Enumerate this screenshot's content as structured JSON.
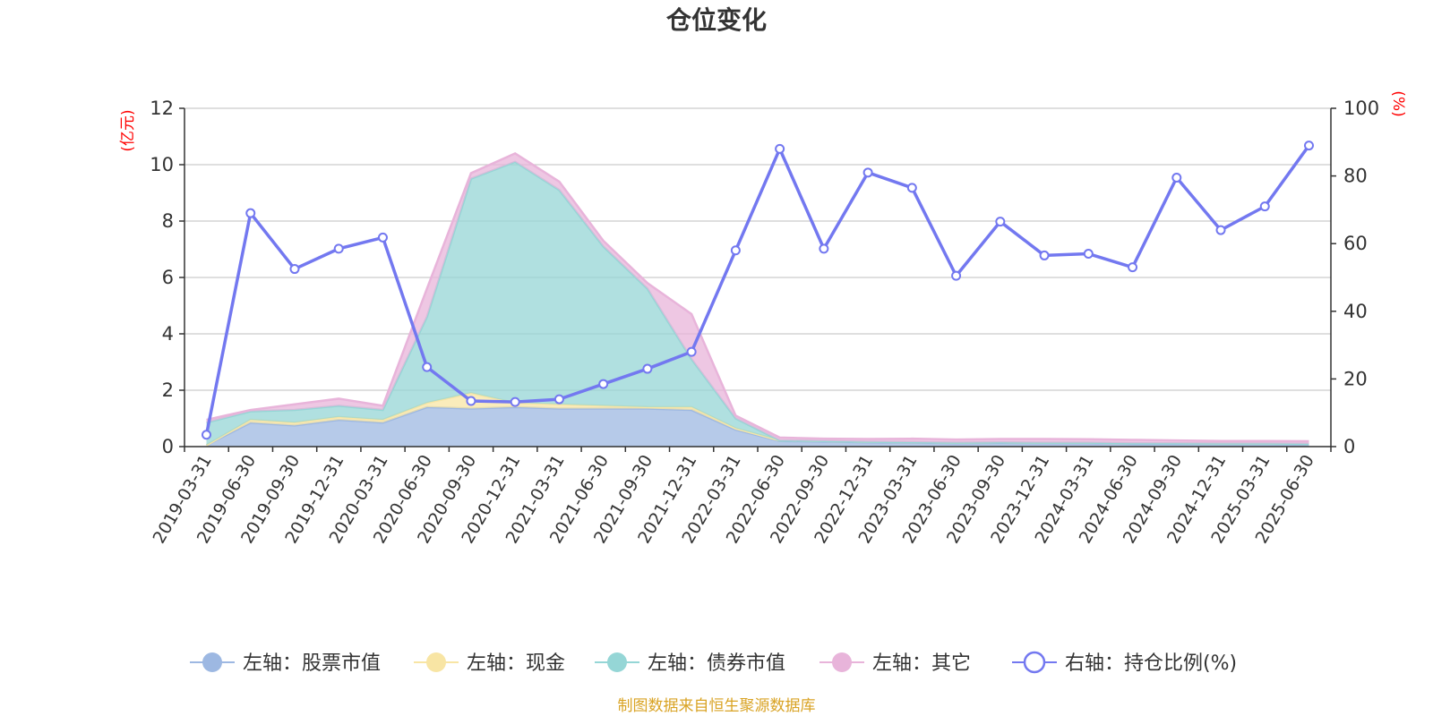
{
  "chart_data": {
    "type": "area",
    "title": "仓位变化",
    "left_axis_unit": "(亿元)",
    "right_axis_unit": "(%)",
    "ylim_left": [
      0,
      12
    ],
    "yticks_left": [
      "0",
      "2",
      "4",
      "6",
      "8",
      "10",
      "12"
    ],
    "ylim_right": [
      0,
      100
    ],
    "yticks_right": [
      "0",
      "20",
      "40",
      "60",
      "80",
      "100"
    ],
    "categories": [
      "2019-03-31",
      "2019-06-30",
      "2019-09-30",
      "2019-12-31",
      "2020-03-31",
      "2020-06-30",
      "2020-09-30",
      "2020-12-31",
      "2021-03-31",
      "2021-06-30",
      "2021-09-30",
      "2021-12-31",
      "2022-03-31",
      "2022-06-30",
      "2022-09-30",
      "2022-12-31",
      "2023-03-31",
      "2023-06-30",
      "2023-09-30",
      "2023-12-31",
      "2024-03-31",
      "2024-06-30",
      "2024-09-30",
      "2024-12-31",
      "2025-03-31",
      "2025-06-30"
    ],
    "series": [
      {
        "name": "左轴：股票市值",
        "axis": "left",
        "stack": true,
        "color": "#9db8e2",
        "values": [
          0.05,
          0.85,
          0.75,
          0.95,
          0.85,
          1.4,
          1.35,
          1.4,
          1.35,
          1.35,
          1.35,
          1.3,
          0.6,
          0.2,
          0.18,
          0.15,
          0.14,
          0.12,
          0.13,
          0.12,
          0.12,
          0.1,
          0.1,
          0.09,
          0.09,
          0.08
        ]
      },
      {
        "name": "左轴：现金",
        "axis": "left",
        "stack": true,
        "color": "#f8e5a4",
        "values": [
          0.0,
          0.1,
          0.1,
          0.1,
          0.1,
          0.15,
          0.55,
          0.15,
          0.15,
          0.1,
          0.05,
          0.1,
          0.05,
          0.02,
          0.02,
          0.02,
          0.02,
          0.02,
          0.02,
          0.02,
          0.02,
          0.02,
          0.02,
          0.02,
          0.02,
          0.02
        ]
      },
      {
        "name": "左轴：债券市值",
        "axis": "left",
        "stack": true,
        "color": "#95d6d6",
        "values": [
          0.8,
          0.3,
          0.45,
          0.4,
          0.35,
          3.05,
          7.6,
          8.55,
          7.6,
          5.65,
          4.2,
          1.7,
          0.35,
          0.0,
          0.0,
          0.0,
          0.0,
          0.0,
          0.0,
          0.0,
          0.0,
          0.0,
          0.0,
          0.0,
          0.0,
          0.0
        ]
      },
      {
        "name": "左轴：其它",
        "axis": "left",
        "stack": true,
        "color": "#e8b4da",
        "values": [
          0.1,
          0.05,
          0.2,
          0.25,
          0.15,
          1.0,
          0.2,
          0.3,
          0.3,
          0.2,
          0.2,
          1.6,
          0.1,
          0.1,
          0.08,
          0.1,
          0.12,
          0.11,
          0.12,
          0.13,
          0.12,
          0.12,
          0.1,
          0.09,
          0.09,
          0.09
        ]
      },
      {
        "name": "右轴：持仓比例(%)",
        "axis": "right",
        "stack": false,
        "color": "#7378f0",
        "values": [
          3.5,
          69.0,
          52.5,
          58.5,
          61.8,
          23.5,
          13.5,
          13.2,
          14.0,
          18.5,
          23.0,
          28.0,
          58.0,
          88.0,
          58.5,
          81.0,
          76.5,
          50.5,
          66.5,
          56.5,
          57.0,
          53.0,
          79.5,
          64.0,
          71.0,
          89.0
        ]
      }
    ],
    "legend_position": "bottom-center",
    "grid": true
  },
  "footer": {
    "source_text": "制图数据来自恒生聚源数据库",
    "source_color": "#d9a324"
  },
  "colors": {
    "left_unit": "#ff0000",
    "right_unit": "#ff0000",
    "grid": "#cccccc",
    "axis": "#333333"
  }
}
